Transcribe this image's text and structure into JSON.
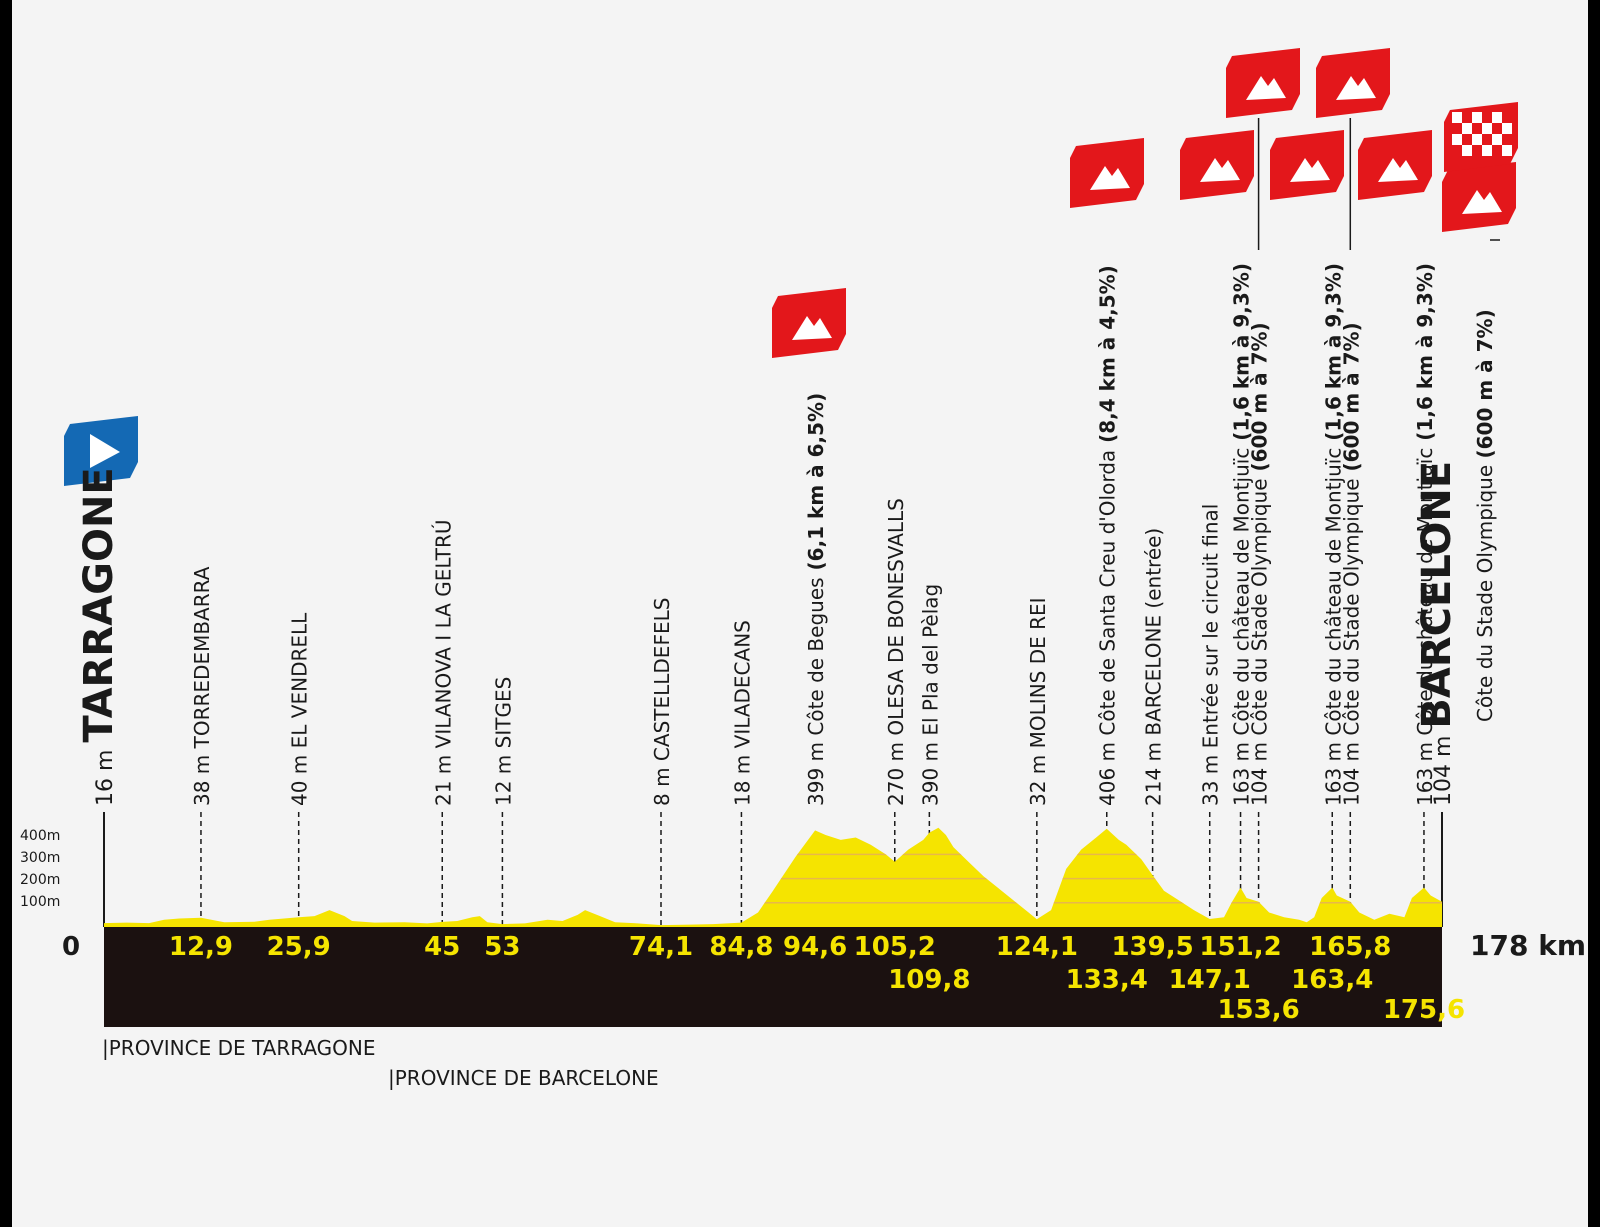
{
  "chart_data": {
    "type": "area",
    "start": "TARRAGONE",
    "finish": "BARCELONE",
    "total_label": "178 km",
    "zero_label": "0",
    "y_ticks": [
      "400m",
      "300m",
      "200m",
      "100m"
    ],
    "ylim": [
      0,
      450
    ],
    "xlim": [
      0,
      178
    ],
    "provinces": [
      "PROVINCE DE TARRAGONE",
      "PROVINCE DE BARCELONE"
    ],
    "waypoints": [
      {
        "km": 0,
        "alt": "16 m",
        "name": "TARRAGONE",
        "bold": "",
        "line": false,
        "row": 0,
        "big": true,
        "km_label": ""
      },
      {
        "km": 12.9,
        "alt": "38 m",
        "name": "TORREDEMBARRA",
        "bold": "",
        "line": true,
        "row": 0,
        "big": false,
        "km_label": "12,9"
      },
      {
        "km": 25.9,
        "alt": "40 m",
        "name": "EL VENDRELL",
        "bold": "",
        "line": true,
        "row": 0,
        "big": false,
        "km_label": "25,9"
      },
      {
        "km": 45,
        "alt": "21 m",
        "name": "VILANOVA I LA GELTRÚ",
        "bold": "",
        "line": true,
        "row": 0,
        "big": false,
        "km_label": "45"
      },
      {
        "km": 53,
        "alt": "12 m",
        "name": "SITGES",
        "bold": "",
        "line": true,
        "row": 0,
        "big": false,
        "km_label": "53"
      },
      {
        "km": 74.1,
        "alt": "8 m",
        "name": "CASTELLDEFELS",
        "bold": "",
        "line": true,
        "row": 0,
        "big": false,
        "km_label": "74,1"
      },
      {
        "km": 84.8,
        "alt": "18 m",
        "name": "VILADECANS",
        "bold": "",
        "line": true,
        "row": 0,
        "big": false,
        "km_label": "84,8"
      },
      {
        "km": 94.6,
        "alt": "399 m",
        "name": "Côte de Begues",
        "bold": "(6,1 km à 6,5%)",
        "line": false,
        "row": 0,
        "big": false,
        "km_label": "94,6"
      },
      {
        "km": 105.2,
        "alt": "270 m",
        "name": "OLESA DE BONESVALLS",
        "bold": "",
        "line": true,
        "row": 0,
        "big": false,
        "km_label": "105,2"
      },
      {
        "km": 109.8,
        "alt": "390 m",
        "name": "El Pla del Pèlag",
        "bold": "",
        "line": true,
        "row": 1,
        "big": false,
        "km_label": "109,8"
      },
      {
        "km": 124.1,
        "alt": "32 m",
        "name": "MOLINS DE REI",
        "bold": "",
        "line": true,
        "row": 0,
        "big": false,
        "km_label": "124,1"
      },
      {
        "km": 133.4,
        "alt": "406 m",
        "name": "Côte de Santa Creu d'Olorda",
        "bold": "(8,4 km à 4,5%)",
        "line": true,
        "row": 1,
        "big": false,
        "km_label": "133,4"
      },
      {
        "km": 139.5,
        "alt": "214 m",
        "name": "BARCELONE (entrée)",
        "bold": "",
        "line": true,
        "row": 0,
        "big": false,
        "km_label": "139,5"
      },
      {
        "km": 147.1,
        "alt": "33 m",
        "name": "Entrée sur le circuit final",
        "bold": "",
        "line": true,
        "row": 1,
        "big": false,
        "km_label": "147,1"
      },
      {
        "km": 151.2,
        "alt": "163 m",
        "name": "Côte du château de Montjuïc",
        "bold": "(1,6 km à 9,3%)",
        "line": true,
        "row": 0,
        "big": false,
        "km_label": "151,2"
      },
      {
        "km": 153.6,
        "alt": "104 m",
        "name": "Côte du Stade Olympique",
        "bold": "(600 m à 7%)",
        "line": true,
        "row": 2,
        "big": false,
        "km_label": "153,6"
      },
      {
        "km": 163.4,
        "alt": "163 m",
        "name": "Côte du château de Montjuïc",
        "bold": "(1,6 km à 9,3%)",
        "line": true,
        "row": 1,
        "big": false,
        "km_label": "163,4"
      },
      {
        "km": 165.8,
        "alt": "104 m",
        "name": "Côte du Stade Olympique",
        "bold": "(600 m à 7%)",
        "line": true,
        "row": 0,
        "big": false,
        "km_label": "165,8"
      },
      {
        "km": 175.6,
        "alt": "163 m",
        "name": "Côte du château de Montjuïc",
        "bold": "(1,6 km à 9,3%)",
        "line": true,
        "row": 2,
        "big": false,
        "km_label": "175,6"
      },
      {
        "km": 178,
        "alt": "104 m",
        "name": "BARCELONE",
        "bold": "",
        "sub": "Côte du Stade Olympique",
        "sub_bold": "(600 m à 7%)",
        "line": false,
        "row": 0,
        "big": true,
        "km_label": ""
      }
    ],
    "profile": [
      [
        0,
        16
      ],
      [
        3,
        18
      ],
      [
        6,
        16
      ],
      [
        8,
        30
      ],
      [
        10,
        35
      ],
      [
        12.9,
        38
      ],
      [
        16,
        20
      ],
      [
        20,
        22
      ],
      [
        22,
        30
      ],
      [
        25.9,
        40
      ],
      [
        28,
        45
      ],
      [
        30,
        70
      ],
      [
        32,
        45
      ],
      [
        33,
        25
      ],
      [
        36,
        18
      ],
      [
        40,
        20
      ],
      [
        43,
        15
      ],
      [
        45,
        21
      ],
      [
        47,
        25
      ],
      [
        49,
        40
      ],
      [
        50,
        45
      ],
      [
        51,
        20
      ],
      [
        53,
        12
      ],
      [
        56,
        15
      ],
      [
        59,
        30
      ],
      [
        61,
        25
      ],
      [
        63,
        50
      ],
      [
        64,
        70
      ],
      [
        66,
        45
      ],
      [
        68,
        20
      ],
      [
        71,
        15
      ],
      [
        74.1,
        8
      ],
      [
        78,
        10
      ],
      [
        81,
        12
      ],
      [
        84.8,
        18
      ],
      [
        87,
        60
      ],
      [
        89,
        150
      ],
      [
        92,
        290
      ],
      [
        94.6,
        399
      ],
      [
        96,
        380
      ],
      [
        98,
        360
      ],
      [
        100,
        370
      ],
      [
        102,
        340
      ],
      [
        104,
        300
      ],
      [
        105.2,
        270
      ],
      [
        107,
        320
      ],
      [
        109,
        360
      ],
      [
        109.8,
        390
      ],
      [
        111,
        410
      ],
      [
        112,
        380
      ],
      [
        113,
        330
      ],
      [
        115,
        270
      ],
      [
        117,
        210
      ],
      [
        119,
        160
      ],
      [
        121,
        110
      ],
      [
        123,
        60
      ],
      [
        124.1,
        32
      ],
      [
        126,
        70
      ],
      [
        128,
        240
      ],
      [
        130,
        320
      ],
      [
        132,
        370
      ],
      [
        133.4,
        406
      ],
      [
        135,
        360
      ],
      [
        136,
        340
      ],
      [
        138,
        280
      ],
      [
        139.5,
        214
      ],
      [
        141,
        150
      ],
      [
        143,
        110
      ],
      [
        145,
        70
      ],
      [
        147.1,
        33
      ],
      [
        149,
        40
      ],
      [
        150,
        100
      ],
      [
        151.2,
        163
      ],
      [
        152,
        120
      ],
      [
        153.6,
        104
      ],
      [
        155,
        60
      ],
      [
        157,
        40
      ],
      [
        159,
        30
      ],
      [
        160,
        20
      ],
      [
        161,
        40
      ],
      [
        162,
        120
      ],
      [
        163.4,
        163
      ],
      [
        164,
        130
      ],
      [
        165.8,
        104
      ],
      [
        167,
        60
      ],
      [
        169,
        30
      ],
      [
        171,
        55
      ],
      [
        173,
        40
      ],
      [
        174,
        120
      ],
      [
        175.6,
        163
      ],
      [
        176.5,
        130
      ],
      [
        178,
        104
      ]
    ],
    "flags": [
      {
        "type": "start",
        "kind": "blue"
      },
      {
        "type": "climb",
        "waypoint": 7
      },
      {
        "type": "climb",
        "waypoint": 11
      },
      {
        "type": "climb",
        "waypoint": 14
      },
      {
        "type": "climb",
        "waypoint": 15
      },
      {
        "type": "climb",
        "waypoint": 16
      },
      {
        "type": "climb",
        "waypoint": 17
      },
      {
        "type": "climb",
        "waypoint": 18
      },
      {
        "type": "climb",
        "waypoint": 19
      },
      {
        "type": "finish",
        "kind": "checkered"
      }
    ],
    "colors": {
      "profile": "#f5e400",
      "profile_stripe": "#e8b84a",
      "base": "#1b1110",
      "km_text": "#f5e400",
      "flag_red": "#e3171b",
      "flag_blue": "#1469b4",
      "background": "#f4f4f4"
    }
  }
}
